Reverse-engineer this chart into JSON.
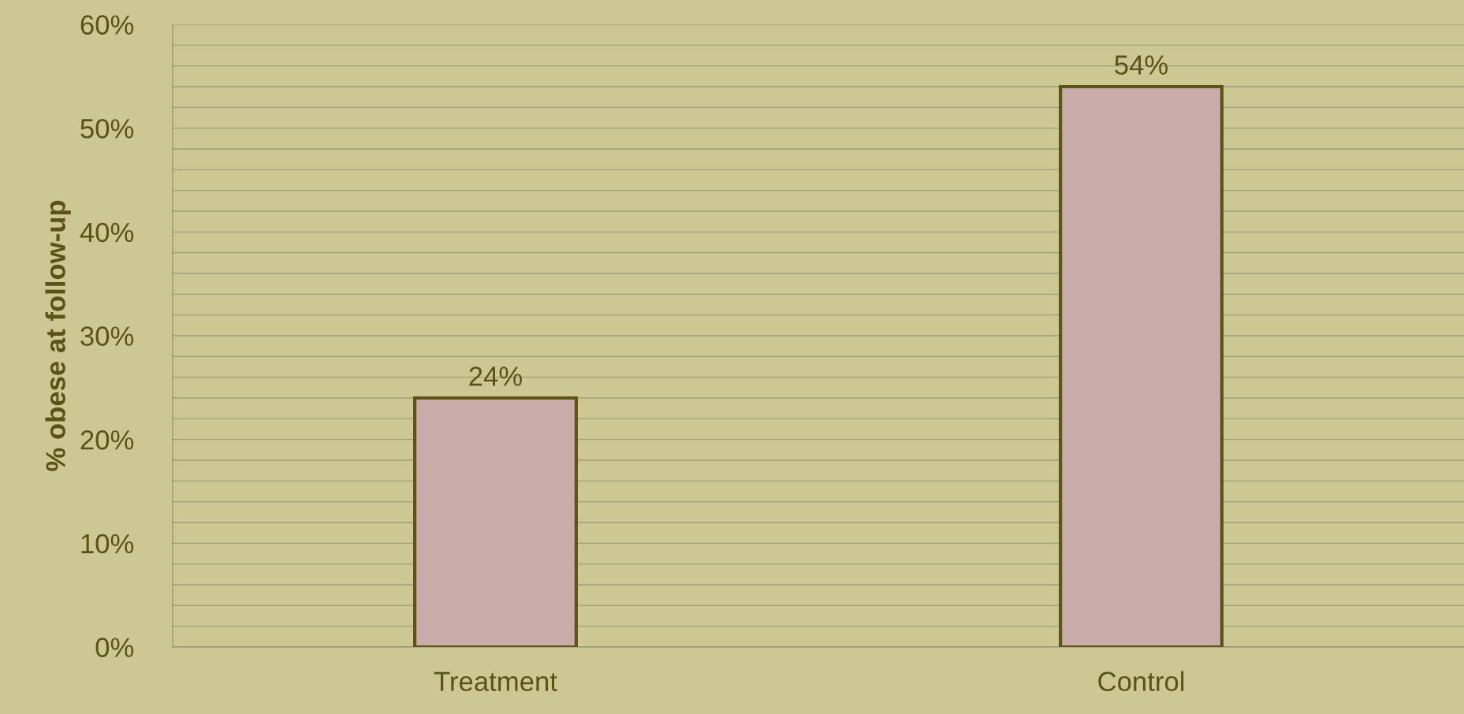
{
  "chart_data": {
    "type": "bar",
    "ylabel": "% obese at follow-up",
    "categories": [
      "Treatment",
      "Control"
    ],
    "values": [
      24,
      54
    ],
    "value_labels": [
      "24%",
      "54%"
    ],
    "color": "#c9acaa",
    "ylim": [
      0,
      60
    ],
    "yticks": [
      {
        "value": 0,
        "label": "0%"
      },
      {
        "value": 2,
        "label": null
      },
      {
        "value": 4,
        "label": null
      },
      {
        "value": 6,
        "label": null
      },
      {
        "value": 8,
        "label": null
      },
      {
        "value": 10,
        "label": "10%"
      },
      {
        "value": 12,
        "label": null
      },
      {
        "value": 14,
        "label": null
      },
      {
        "value": 16,
        "label": null
      },
      {
        "value": 18,
        "label": null
      },
      {
        "value": 20,
        "label": "20%"
      },
      {
        "value": 22,
        "label": null
      },
      {
        "value": 24,
        "label": null
      },
      {
        "value": 26,
        "label": null
      },
      {
        "value": 28,
        "label": null
      },
      {
        "value": 30,
        "label": "30%"
      },
      {
        "value": 32,
        "label": null
      },
      {
        "value": 34,
        "label": null
      },
      {
        "value": 36,
        "label": null
      },
      {
        "value": 38,
        "label": null
      },
      {
        "value": 40,
        "label": "40%"
      },
      {
        "value": 42,
        "label": null
      },
      {
        "value": 44,
        "label": null
      },
      {
        "value": 46,
        "label": null
      },
      {
        "value": 48,
        "label": null
      },
      {
        "value": 50,
        "label": "50%"
      },
      {
        "value": 52,
        "label": null
      },
      {
        "value": 54,
        "label": null
      },
      {
        "value": 56,
        "label": null
      },
      {
        "value": 58,
        "label": null
      },
      {
        "value": 60,
        "label": "60%"
      }
    ],
    "grid": "y"
  }
}
